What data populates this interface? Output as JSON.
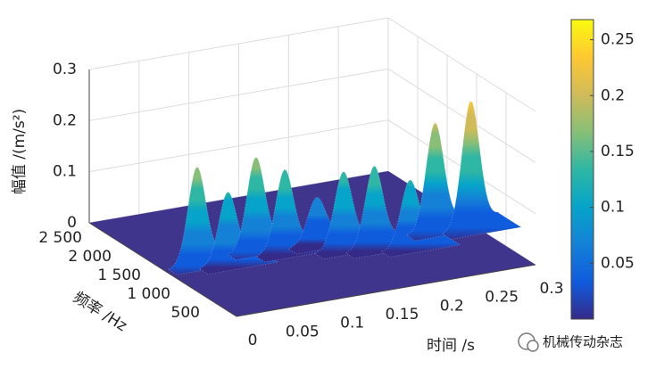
{
  "chart_data": {
    "type": "surface3d",
    "xlabel": "时间 /s",
    "ylabel": "频率 /Hz",
    "zlabel": "幅值 /(m/s²)",
    "x": [
      0.04,
      0.065,
      0.105,
      0.125,
      0.16,
      0.175,
      0.2,
      0.23,
      0.27,
      0.3
    ],
    "y": [
      1350,
      1250,
      1450,
      1300,
      1350,
      1150,
      1050,
      950,
      1200,
      1100
    ],
    "z": [
      0.18,
      0.13,
      0.17,
      0.15,
      0.08,
      0.14,
      0.15,
      0.12,
      0.2,
      0.24
    ],
    "xlim": [
      0,
      0.3
    ],
    "xticks": [
      0,
      0.05,
      0.1,
      0.15,
      0.2,
      0.25,
      0.3
    ],
    "ylim": [
      0,
      2500
    ],
    "yticks": [
      500,
      {
        "value": 1000,
        "label": "1 000"
      },
      {
        "value": 1500,
        "label": "1 500"
      },
      {
        "value": 2000,
        "label": "2 000"
      },
      {
        "value": 2500,
        "label": "2 500"
      }
    ],
    "zlim": [
      0,
      0.3
    ],
    "zticks": [
      0,
      0.1,
      0.2,
      0.3
    ],
    "clim": [
      0,
      0.268
    ],
    "cticks": [
      0.05,
      0.1,
      0.15,
      0.2,
      0.25
    ],
    "colormap": [
      "#352a87",
      "#0f5cdd",
      "#1481d6",
      "#06a4ca",
      "#2eb7a4",
      "#87bf77",
      "#d1bb59",
      "#fec832",
      "#f9fb0e"
    ],
    "grid": true
  },
  "watermark": "机械传动杂志"
}
